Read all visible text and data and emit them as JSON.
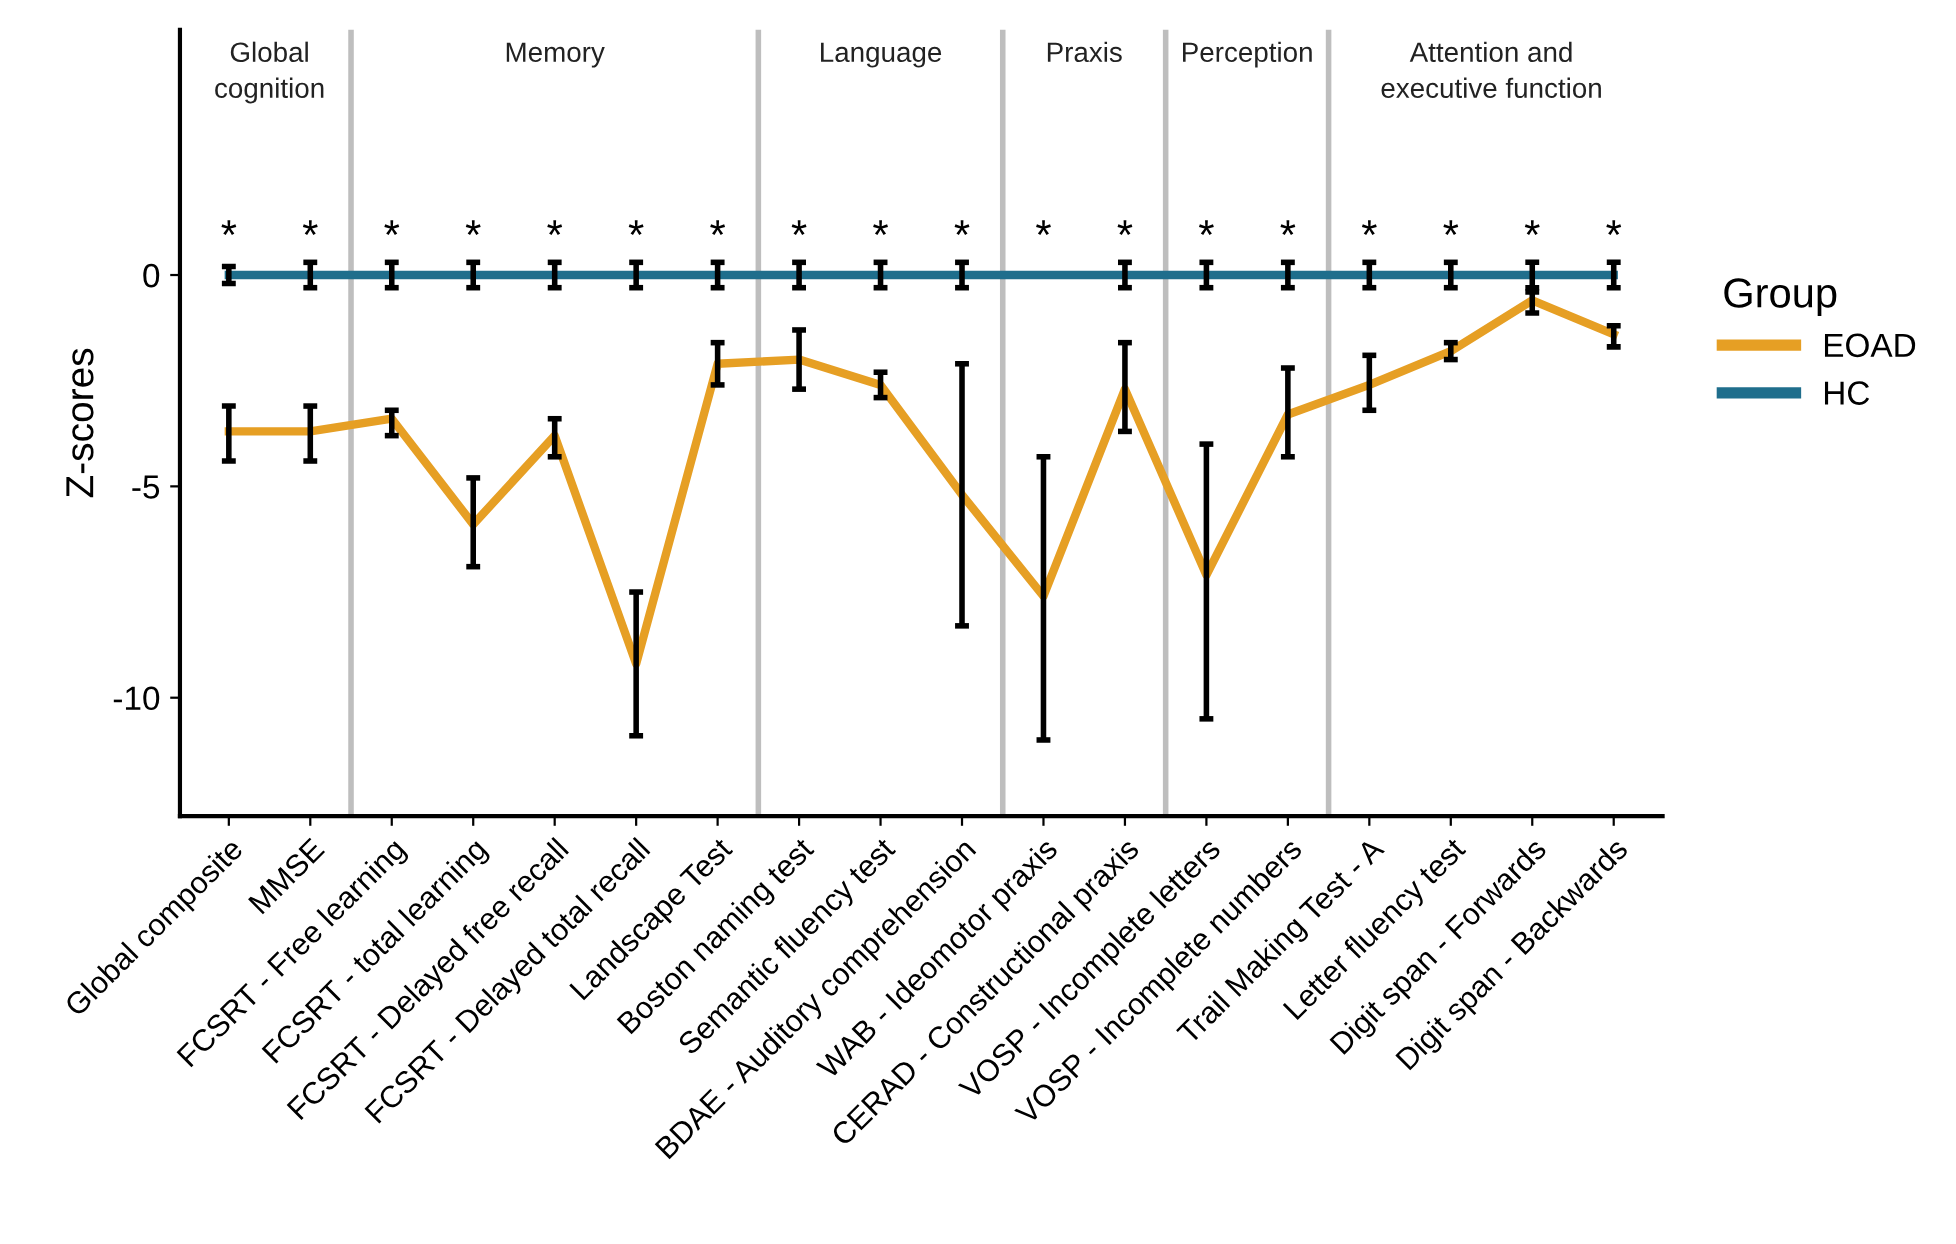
{
  "chart_data": {
    "type": "line",
    "ylabel": "Z-scores",
    "legend_title": "Group",
    "legend": "right",
    "grid": false,
    "marker": "none",
    "line_style": "solid",
    "categories": [
      "Global composite",
      "MMSE",
      "FCSRT - Free learning",
      "FCSRT - total learning",
      "FCSRT - Delayed free recall",
      "FCSRT - Delayed total recall",
      "Landscape Test",
      "Boston naming test",
      "Semantic fluency test",
      "BDAE - Auditory comprehension",
      "WAB - Ideomotor praxis",
      "CERAD - Constructional praxis",
      "VOSP - Incomplete letters",
      "VOSP - Incomplete numbers",
      "Trail Making Test - A",
      "Letter fluency test",
      "Digit span - Forwards",
      "Digit span - Backwards"
    ],
    "ylim": [
      -12.8,
      5.8
    ],
    "yticks": [
      -10,
      -5,
      0
    ],
    "series": [
      {
        "name": "EOAD",
        "color": "#e69f24",
        "values": [
          -3.7,
          -3.7,
          -3.4,
          -5.9,
          -3.8,
          -9.2,
          -2.1,
          -2.0,
          -2.6,
          -5.2,
          -7.6,
          -2.7,
          -7.1,
          -3.3,
          -2.6,
          -1.8,
          -0.6,
          -1.4
        ],
        "errors": [
          [
            -4.4,
            -3.1
          ],
          [
            -4.4,
            -3.1
          ],
          [
            -3.8,
            -3.2
          ],
          [
            -6.9,
            -4.8
          ],
          [
            -4.3,
            -3.4
          ],
          [
            -10.9,
            -7.5
          ],
          [
            -2.6,
            -1.6
          ],
          [
            -2.7,
            -1.3
          ],
          [
            -2.9,
            -2.3
          ],
          [
            -8.3,
            -2.1
          ],
          [
            -11.0,
            -4.3
          ],
          [
            -3.7,
            -1.6
          ],
          [
            -10.5,
            -4.0
          ],
          [
            -4.3,
            -2.2
          ],
          [
            -3.2,
            -1.9
          ],
          [
            -2.0,
            -1.6
          ],
          [
            -0.9,
            -0.4
          ],
          [
            -1.7,
            -1.2
          ]
        ]
      },
      {
        "name": "HC",
        "color": "#1f6e8c",
        "values": [
          0,
          0,
          0,
          0,
          0,
          0,
          0,
          0,
          0,
          0,
          0,
          0,
          0,
          0,
          0,
          0,
          0,
          0
        ],
        "errors": [
          0.2,
          0.3,
          0.3,
          0.3,
          0.3,
          0.3,
          0.3,
          0.3,
          0.3,
          0.3,
          null,
          0.3,
          0.3,
          0.3,
          0.3,
          0.3,
          0.3,
          0.3
        ]
      }
    ],
    "annotations": [
      "Global\ncognition",
      "Memory",
      "Language",
      "Praxis",
      "Perception",
      "Attention and\nexecutive function",
      "*",
      "*",
      "*",
      "*",
      "*",
      "*",
      "*",
      "*",
      "*",
      "*",
      "*",
      "*",
      "*",
      "*",
      "*",
      "*",
      "*",
      "*"
    ]
  }
}
